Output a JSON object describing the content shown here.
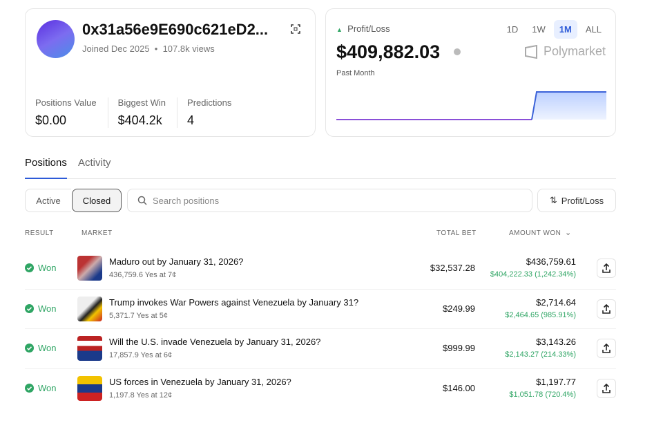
{
  "profile": {
    "address": "0x31a56e9E690c621eD2...",
    "joined": "Joined Dec 2025",
    "views": "107.8k views",
    "stats": [
      {
        "label": "Positions Value",
        "value": "$0.00"
      },
      {
        "label": "Biggest Win",
        "value": "$404.2k"
      },
      {
        "label": "Predictions",
        "value": "4"
      }
    ]
  },
  "pnl": {
    "label": "Profit/Loss",
    "amount": "$409,882.03",
    "period": "Past Month",
    "ranges": [
      "1D",
      "1W",
      "1M",
      "ALL"
    ],
    "selected_range": "1M",
    "brand": "Polymarket"
  },
  "tabs": [
    "Positions",
    "Activity"
  ],
  "filters": [
    "Active",
    "Closed"
  ],
  "selected_filter": "Closed",
  "search_placeholder": "Search positions",
  "sort_button": "Profit/Loss",
  "table": {
    "headers": [
      "RESULT",
      "MARKET",
      "TOTAL BET",
      "AMOUNT WON"
    ],
    "rows": [
      {
        "result": "Won",
        "market": "Maduro out by January 31, 2026?",
        "detail": "436,759.6 Yes at 7¢",
        "total_bet": "$32,537.28",
        "amount_won": "$436,759.61",
        "gain": "$404,222.33 (1,242.34%)"
      },
      {
        "result": "Won",
        "market": "Trump invokes War Powers against Venezuela by January 31?",
        "detail": "5,371.7 Yes at 5¢",
        "total_bet": "$249.99",
        "amount_won": "$2,714.64",
        "gain": "$2,464.65 (985.91%)"
      },
      {
        "result": "Won",
        "market": "Will the U.S. invade Venezuela by January 31, 2026?",
        "detail": "17,857.9 Yes at 6¢",
        "total_bet": "$999.99",
        "amount_won": "$3,143.26",
        "gain": "$2,143.27 (214.33%)"
      },
      {
        "result": "Won",
        "market": "US forces in Venezuela by January 31, 2026?",
        "detail": "1,197.8 Yes at 12¢",
        "total_bet": "$146.00",
        "amount_won": "$1,197.77",
        "gain": "$1,051.78 (720.4%)"
      }
    ]
  }
}
